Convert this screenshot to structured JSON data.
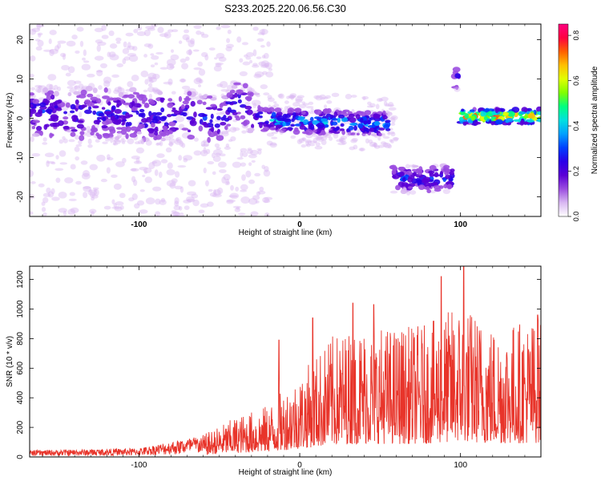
{
  "title": "S233.2025.220.06.56.C30",
  "chart_data": [
    {
      "type": "heatmap",
      "xlabel": "Height of straight line (km)",
      "ylabel": "Frequency (Hz)",
      "xlim": [
        -168,
        150
      ],
      "ylim": [
        -25,
        24
      ],
      "xticks": [
        -100,
        0,
        100
      ],
      "yticks": [
        -20,
        -10,
        0,
        10,
        20
      ],
      "colorbar": {
        "label": "Normalized spectral amplitude",
        "range": [
          0,
          0.85
        ],
        "ticks": [
          "0.0",
          "0.2",
          "0.4",
          "0.6",
          "0.8"
        ],
        "colormap": [
          "#ffffff",
          "#d9b8f2",
          "#9b4de0",
          "#5b00d6",
          "#2a00e8",
          "#0040ff",
          "#00a0ff",
          "#00e0e0",
          "#00ff80",
          "#80ff00",
          "#e0ff00",
          "#ffc000",
          "#ff6000",
          "#ff0040",
          "#ff0080"
        ]
      },
      "ridge": [
        {
          "x": [
            -168,
            55
          ],
          "f_start": 1.5,
          "f_end": -1.5,
          "peak_amp": 0.45,
          "note_x_peak": -37
        },
        {
          "x": [
            57,
            95
          ],
          "f_start": -15.5,
          "f_end": -15.5,
          "peak_amp": 0.32
        },
        {
          "x": [
            96,
            99
          ],
          "f_start": 10,
          "f_end": 10,
          "peak_amp": 0.3
        },
        {
          "x": [
            100,
            150
          ],
          "f_start": 0.5,
          "f_end": 0.5,
          "peak_amp": 0.85
        }
      ]
    },
    {
      "type": "line",
      "xlabel": "Height of straight line (km)",
      "ylabel": "SNR (10 * v/v)",
      "xlim": [
        -168,
        150
      ],
      "ylim": [
        0,
        1290
      ],
      "xticks": [
        -100,
        0,
        100
      ],
      "yticks": [
        0,
        200,
        400,
        600,
        800,
        1000,
        1200
      ],
      "color": "#e8342a",
      "envelope": {
        "x": [
          -168,
          -100,
          -60,
          -40,
          -20,
          0,
          20,
          40,
          60,
          80,
          100,
          120,
          150
        ],
        "y": [
          45,
          60,
          150,
          270,
          350,
          560,
          820,
          900,
          880,
          900,
          1050,
          900,
          950
        ]
      },
      "peaks": [
        {
          "x": 102,
          "y": 1290
        },
        {
          "x": 88,
          "y": 1220
        },
        {
          "x": 33,
          "y": 1040
        },
        {
          "x": 46,
          "y": 1030
        },
        {
          "x": 8,
          "y": 940
        },
        {
          "x": -13,
          "y": 790
        },
        {
          "x": 148,
          "y": 960
        }
      ]
    }
  ]
}
